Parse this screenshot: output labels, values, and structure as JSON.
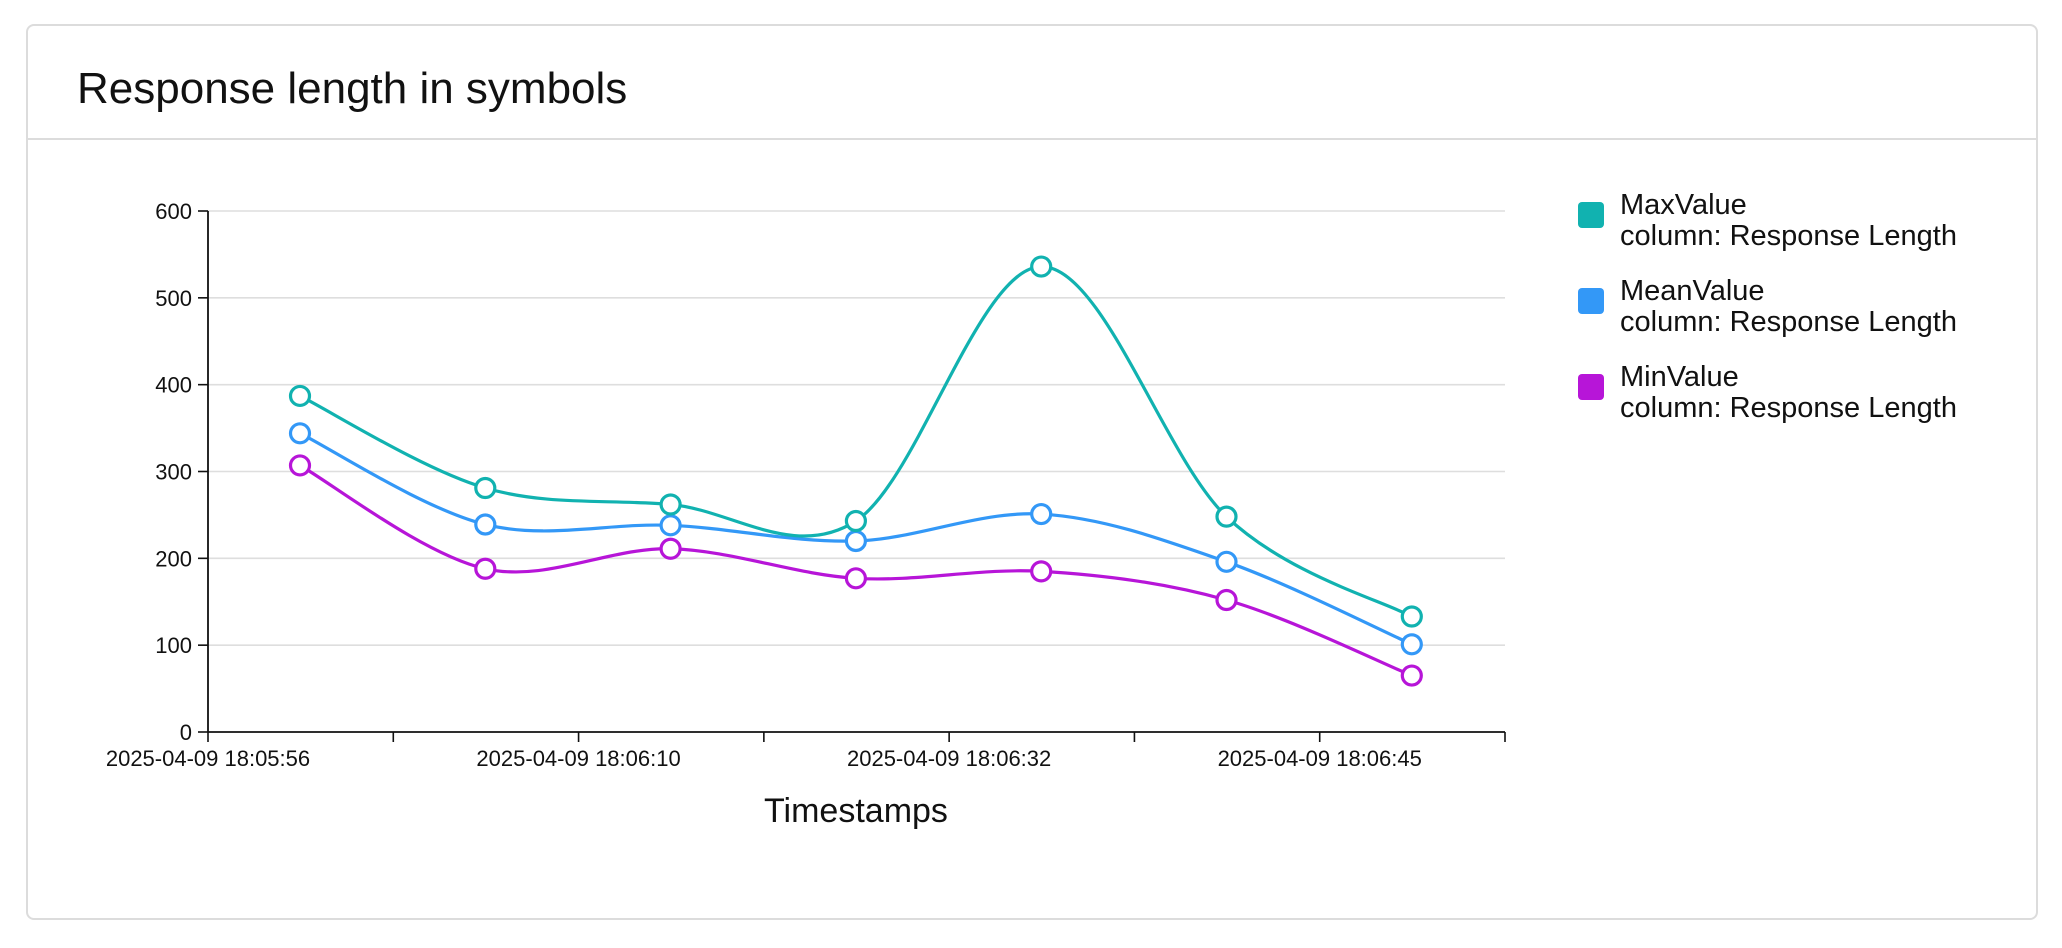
{
  "card": {
    "title": "Response length in symbols"
  },
  "chart_data": {
    "type": "line",
    "title": "Response length in symbols",
    "xlabel": "Timestamps",
    "ylabel": "",
    "ylim": [
      0,
      600
    ],
    "yticks": [
      0,
      100,
      200,
      300,
      400,
      500,
      600
    ],
    "xtick_labels": [
      "2025-04-09 18:05:56",
      "2025-04-09 18:06:10",
      "2025-04-09 18:06:32",
      "2025-04-09 18:06:45"
    ],
    "grid": "horizontal",
    "legend_position": "right",
    "series": [
      {
        "name": "MaxValue",
        "legend_sub": "column: Response Length",
        "color": "#11b2b0",
        "values": [
          387,
          281,
          262,
          243,
          536,
          248,
          133
        ]
      },
      {
        "name": "MeanValue",
        "legend_sub": "column: Response Length",
        "color": "#3398f7",
        "values": [
          344,
          239,
          238,
          220,
          251,
          196,
          101
        ]
      },
      {
        "name": "MinValue",
        "legend_sub": "column: Response Length",
        "color": "#b715d8",
        "values": [
          307,
          188,
          211,
          177,
          185,
          152,
          65
        ]
      }
    ]
  }
}
